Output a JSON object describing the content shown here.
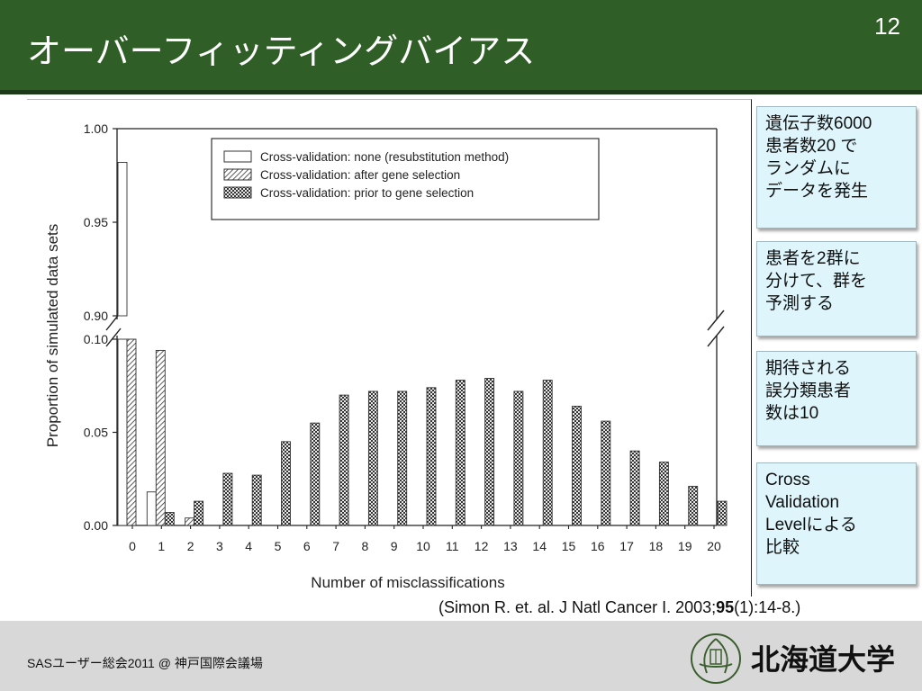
{
  "slide": {
    "title": "オーバーフィッティングバイアス",
    "number": "12"
  },
  "notes": [
    "遺伝子数6000\n患者数20 で\nランダムに\nデータを発生",
    "患者を2群に\n分けて、群を\n予測する",
    "期待される\n誤分類患者\n数は10",
    "Cross\nValidation\nLevelによる\n比較"
  ],
  "citation": {
    "prefix": "(Simon R. et. al. J Natl Cancer I. 2003;",
    "volume": "95",
    "suffix": "(1):14-8.)"
  },
  "footer": {
    "text": "SASユーザー総会2011 @ 神戸国際会議場",
    "university": "北海道大学"
  },
  "colors": {
    "header": "#2f5e27",
    "note_bg": "#ddf5fb",
    "footer": "#d8d8d8"
  },
  "chart_data": {
    "type": "bar",
    "xlabel": "Number of misclassifications",
    "ylabel": "Proportion of simulated data sets",
    "categories": [
      "0",
      "1",
      "2",
      "3",
      "4",
      "5",
      "6",
      "7",
      "8",
      "9",
      "10",
      "11",
      "12",
      "13",
      "14",
      "15",
      "16",
      "17",
      "18",
      "19",
      "20"
    ],
    "y_axis_breaks": {
      "lower_range": [
        0.0,
        0.1
      ],
      "upper_range": [
        0.9,
        1.0
      ],
      "lower_ticks": [
        "0.00",
        "0.05",
        "0.10"
      ],
      "upper_ticks": [
        "0.90",
        "0.95",
        "1.00"
      ]
    },
    "series": [
      {
        "name": "Cross-validation: none (resubstitution method)",
        "pattern": "open",
        "values": [
          0.982,
          0.018,
          0.0,
          0,
          0,
          0,
          0,
          0,
          0,
          0,
          0,
          0,
          0,
          0,
          0,
          0,
          0,
          0,
          0,
          0,
          0
        ]
      },
      {
        "name": "Cross-validation: after gene selection",
        "pattern": "hatched",
        "values": [
          0.9,
          0.094,
          0.004,
          0,
          0,
          0,
          0,
          0,
          0,
          0,
          0,
          0,
          0,
          0,
          0,
          0,
          0,
          0,
          0,
          0,
          0
        ]
      },
      {
        "name": "Cross-validation: prior to gene selection",
        "pattern": "crosshatched",
        "values": [
          0,
          0.007,
          0.013,
          0.028,
          0.027,
          0.045,
          0.055,
          0.07,
          0.072,
          0.072,
          0.074,
          0.078,
          0.079,
          0.072,
          0.078,
          0.064,
          0.056,
          0.04,
          0.034,
          0.021,
          0.013
        ]
      }
    ],
    "legend": "top-center"
  }
}
